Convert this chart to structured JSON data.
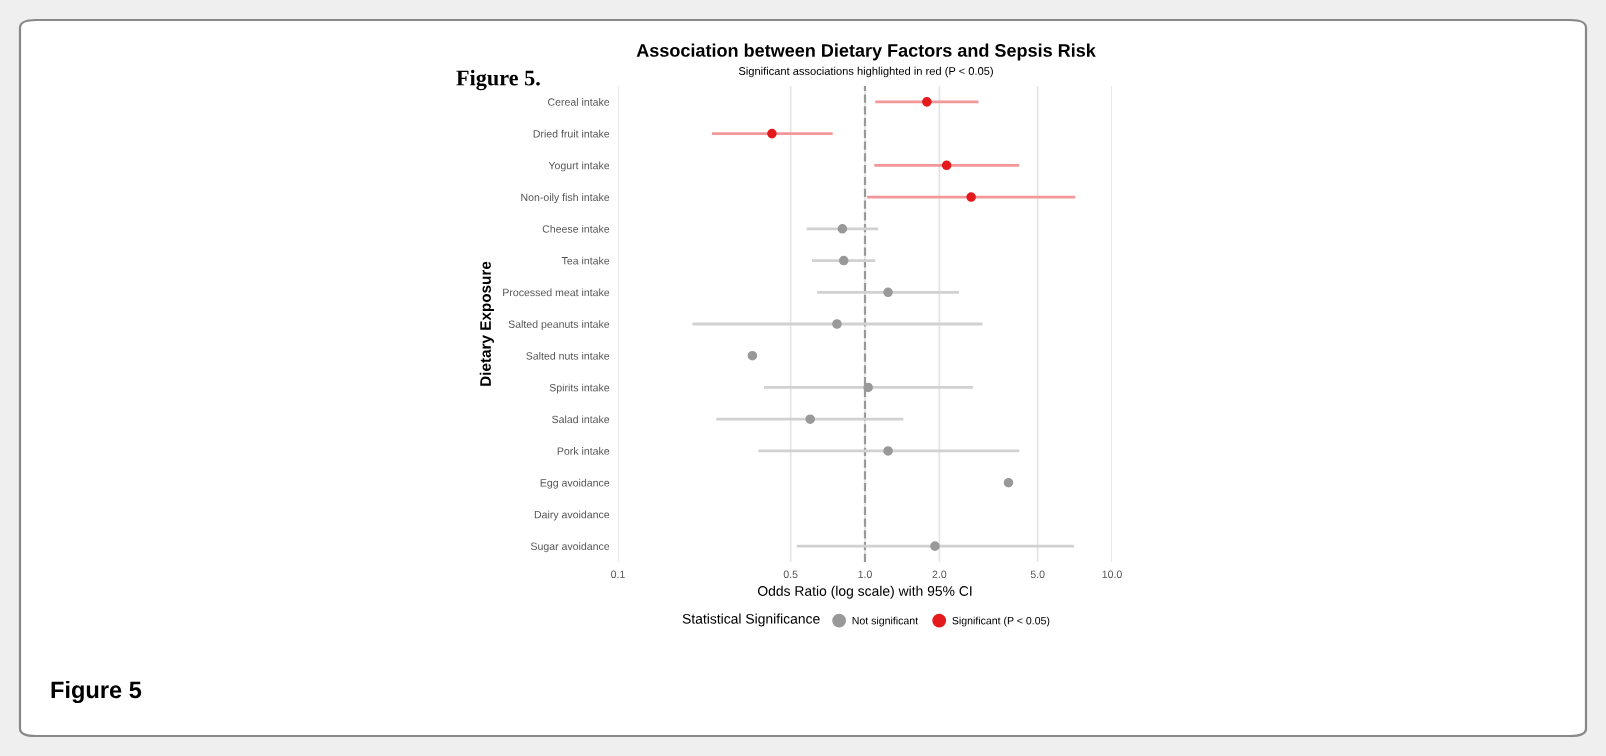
{
  "chart_data": {
    "type": "scatter",
    "orientation": "horizontal",
    "title": "Association between Dietary Factors and Sepsis Risk",
    "subtitle": "Significant associations highlighted in red (P < 0.05)",
    "xlabel": "Odds Ratio (log scale) with 95% CI",
    "ylabel": "Dietary Exposure",
    "legend_title": "Statistical Significance",
    "categories": [
      "Cereal intake",
      "Dried fruit intake",
      "Yogurt intake",
      "Non-oily fish intake",
      "Cheese intake",
      "Tea intake",
      "Processed meat intake",
      "Salted peanuts intake",
      "Salted nuts intake",
      "Spirits intake",
      "Salad intake",
      "Pork intake",
      "Egg avoidance",
      "Dairy avoidance",
      "Sugar avoidance"
    ],
    "series": [
      {
        "name": "Not significant",
        "color": "#999999",
        "values": [
          null,
          null,
          null,
          null,
          0.81,
          0.82,
          1.24,
          0.77,
          0.35,
          1.03,
          0.6,
          1.24,
          3.81,
          null,
          1.92
        ],
        "errors": [
          null,
          null,
          null,
          null,
          [
            0.58,
            1.13
          ],
          [
            0.61,
            1.1
          ],
          [
            0.64,
            2.4
          ],
          [
            0.2,
            2.99
          ],
          null,
          [
            0.39,
            2.74
          ],
          [
            0.25,
            1.43
          ],
          [
            0.37,
            4.21
          ],
          null,
          null,
          [
            0.53,
            7.01
          ]
        ]
      },
      {
        "name": "Significant (P < 0.05)",
        "color": "#e41a1c",
        "values": [
          1.78,
          0.42,
          2.14,
          2.69,
          null,
          null,
          null,
          null,
          null,
          null,
          null,
          null,
          null,
          null,
          null
        ],
        "errors": [
          [
            1.1,
            2.88
          ],
          [
            0.24,
            0.74
          ],
          [
            1.09,
            4.21
          ],
          [
            1.02,
            7.1
          ],
          null,
          null,
          null,
          null,
          null,
          null,
          null,
          null,
          null,
          null,
          null
        ]
      }
    ],
    "log": "x",
    "xlim": [
      0.1,
      10
    ],
    "xticks": [
      0.1,
      {
        "value": 0.5,
        "label": "0.5"
      },
      {
        "value": 1,
        "label": "1.0"
      },
      {
        "value": 2,
        "label": "2.0"
      },
      {
        "value": 5,
        "label": "5.0"
      },
      {
        "value": 10,
        "label": "10.0"
      }
    ],
    "ref_lines": [
      {
        "axis": "x",
        "value": 1,
        "label": null,
        "color": "#999999",
        "line_style": "dashed"
      }
    ],
    "grid": "x",
    "legend": "bottom",
    "marker": "circle",
    "annotations": [
      "Figure 5.",
      "Figure 5"
    ]
  }
}
